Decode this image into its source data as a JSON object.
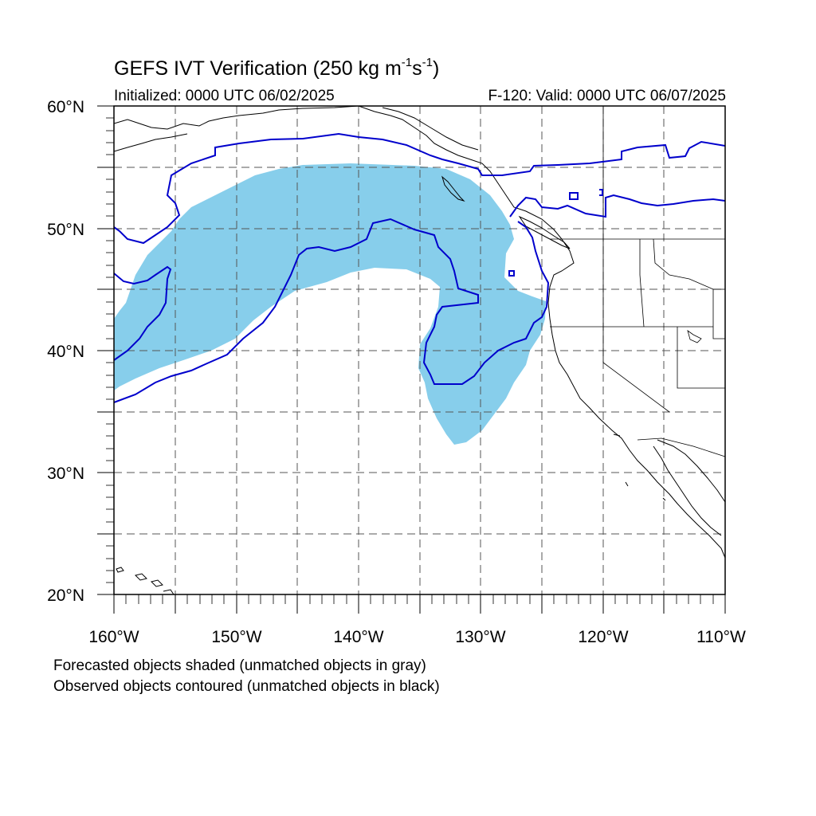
{
  "title": {
    "main": "GEFS IVT Verification (250 kg m",
    "exp1": "-1",
    "mid": "s",
    "exp2": "-1",
    "end": ")"
  },
  "subtitle": {
    "initialized": "Initialized: 0000 UTC 06/02/2025",
    "valid": "F-120: Valid: 0000 UTC 06/07/2025"
  },
  "map": {
    "lat_labels": [
      "60°N",
      "50°N",
      "40°N",
      "30°N",
      "20°N"
    ],
    "lon_labels": [
      "160°W",
      "150°W",
      "140°W",
      "130°W",
      "120°W",
      "110°W"
    ],
    "lat_range": [
      20,
      60
    ],
    "lon_range": [
      -160,
      -110
    ],
    "grid": "dashed every 5 degrees",
    "colors": {
      "forecast_fill": "#87ceeb",
      "observed_contour": "#0000cc",
      "coastline": "#000000",
      "grid": "#555555"
    }
  },
  "legend": {
    "line1": "Forecasted objects shaded (unmatched objects in gray)",
    "line2": "Observed objects contoured (unmatched objects in black)"
  }
}
